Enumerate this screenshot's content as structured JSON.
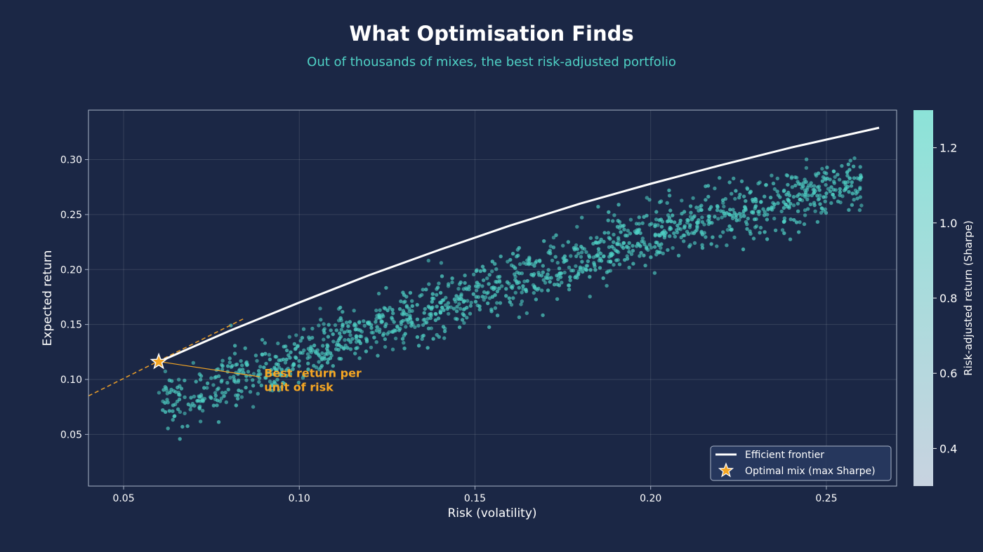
{
  "chart_data": {
    "type": "scatter",
    "title": "What Optimisation Finds",
    "subtitle": "Out of thousands of mixes, the best risk-adjusted portfolio",
    "xlabel": "Risk (volatility)",
    "ylabel": "Expected return",
    "xlim": [
      0.04,
      0.27
    ],
    "ylim": [
      0.003,
      0.345
    ],
    "x_ticks": [
      "0.05",
      "0.10",
      "0.15",
      "0.20",
      "0.25"
    ],
    "y_ticks": [
      "0.05",
      "0.10",
      "0.15",
      "0.20",
      "0.25",
      "0.30"
    ],
    "grid": true,
    "legend_position": "bottom-right",
    "legend": {
      "frontier": "Efficient frontier",
      "optimal": "Optimal mix (max Sharpe)"
    },
    "colorbar": {
      "label": "Risk-adjusted return (Sharpe)",
      "range": [
        0.3,
        1.3
      ],
      "ticks": [
        "0.4",
        "0.6",
        "0.8",
        "1.0",
        "1.2"
      ],
      "color_low": "#c8d3e0",
      "color_high": "#8ce3d8"
    },
    "frontier": {
      "x": [
        0.06,
        0.08,
        0.1,
        0.12,
        0.14,
        0.16,
        0.18,
        0.2,
        0.22,
        0.24,
        0.265
      ],
      "y": [
        0.116,
        0.144,
        0.17,
        0.195,
        0.218,
        0.24,
        0.26,
        0.278,
        0.295,
        0.311,
        0.329
      ]
    },
    "scatter_band": {
      "x_range": [
        0.06,
        0.26
      ],
      "trend_x": [
        0.06,
        0.1,
        0.15,
        0.2,
        0.26
      ],
      "trend_y": [
        0.075,
        0.12,
        0.178,
        0.232,
        0.282
      ],
      "spread": 0.013,
      "point_count": 1400,
      "point_color": "#4fd1c5"
    },
    "capital_market_line": {
      "x": [
        0.04,
        0.084
      ],
      "y": [
        0.085,
        0.155
      ],
      "color": "#e39a2b"
    },
    "optimal_point": {
      "x": 0.06,
      "y": 0.116,
      "color": "#f5a623"
    },
    "annotation": {
      "lines": [
        "Best return per",
        "unit of risk"
      ],
      "x": 0.09,
      "y": 0.103,
      "color": "#f5a623"
    },
    "colors": {
      "background": "#1b2745",
      "subtitle": "#4fd1c5",
      "frontier": "#ffffff",
      "axis": "#aab4c8"
    }
  }
}
